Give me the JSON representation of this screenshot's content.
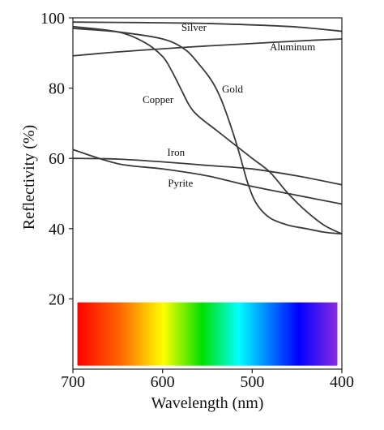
{
  "chart_data": {
    "type": "line",
    "xlabel": "Wavelength (nm)",
    "ylabel": "Reflectivity (%)",
    "xlim": [
      700,
      400
    ],
    "ylim": [
      0,
      100
    ],
    "x_reversed": true,
    "grid": false,
    "x_ticks": [
      700,
      600,
      500,
      400
    ],
    "y_ticks": [
      20,
      40,
      60,
      80,
      100
    ],
    "series": [
      {
        "name": "Silver",
        "x": [
          700,
          650,
          600,
          550,
          500,
          450,
          400
        ],
        "y": [
          98.8,
          98.7,
          98.6,
          98.4,
          98.0,
          97.4,
          96.2
        ]
      },
      {
        "name": "Aluminum",
        "x": [
          700,
          650,
          600,
          550,
          500,
          450,
          400
        ],
        "y": [
          89.2,
          90.3,
          91.2,
          92.0,
          92.7,
          93.4,
          94.0
        ]
      },
      {
        "name": "Gold",
        "x": [
          700,
          650,
          600,
          575,
          560,
          545,
          535,
          525,
          515,
          505,
          495,
          480,
          460,
          440,
          420,
          400
        ],
        "y": [
          97.0,
          96.0,
          94.0,
          91.0,
          87.0,
          82.0,
          77.0,
          70.0,
          62.0,
          53.0,
          47.0,
          43.0,
          41.0,
          40.0,
          39.0,
          38.5
        ]
      },
      {
        "name": "Copper",
        "x": [
          700,
          650,
          620,
          600,
          590,
          580,
          570,
          560,
          540,
          520,
          500,
          480,
          460,
          440,
          420,
          400
        ],
        "y": [
          97.5,
          96.0,
          93.0,
          89.0,
          85.0,
          80.0,
          75.0,
          72.0,
          68.0,
          64.0,
          60.0,
          56.0,
          50.0,
          45.0,
          41.0,
          38.5
        ]
      },
      {
        "name": "Iron",
        "x": [
          700,
          650,
          600,
          550,
          500,
          450,
          400
        ],
        "y": [
          60.0,
          59.8,
          59.0,
          58.0,
          57.0,
          55.0,
          52.5
        ]
      },
      {
        "name": "Pyrite",
        "x": [
          700,
          650,
          600,
          550,
          500,
          450,
          400
        ],
        "y": [
          62.5,
          58.5,
          57.0,
          55.0,
          52.0,
          49.5,
          47.0
        ]
      }
    ],
    "label_positions": [
      {
        "name": "Silver",
        "x": 565,
        "y": 96.3
      },
      {
        "name": "Aluminum",
        "x": 455,
        "y": 90.8
      },
      {
        "name": "Gold",
        "x": 522,
        "y": 78.8
      },
      {
        "name": "Copper",
        "x": 605,
        "y": 75.7
      },
      {
        "name": "Iron",
        "x": 585,
        "y": 60.7
      },
      {
        "name": "Pyrite",
        "x": 580,
        "y": 52.0
      }
    ],
    "spectrum_band": {
      "y_range": [
        1,
        19
      ],
      "x_range": [
        695,
        405
      ]
    }
  }
}
